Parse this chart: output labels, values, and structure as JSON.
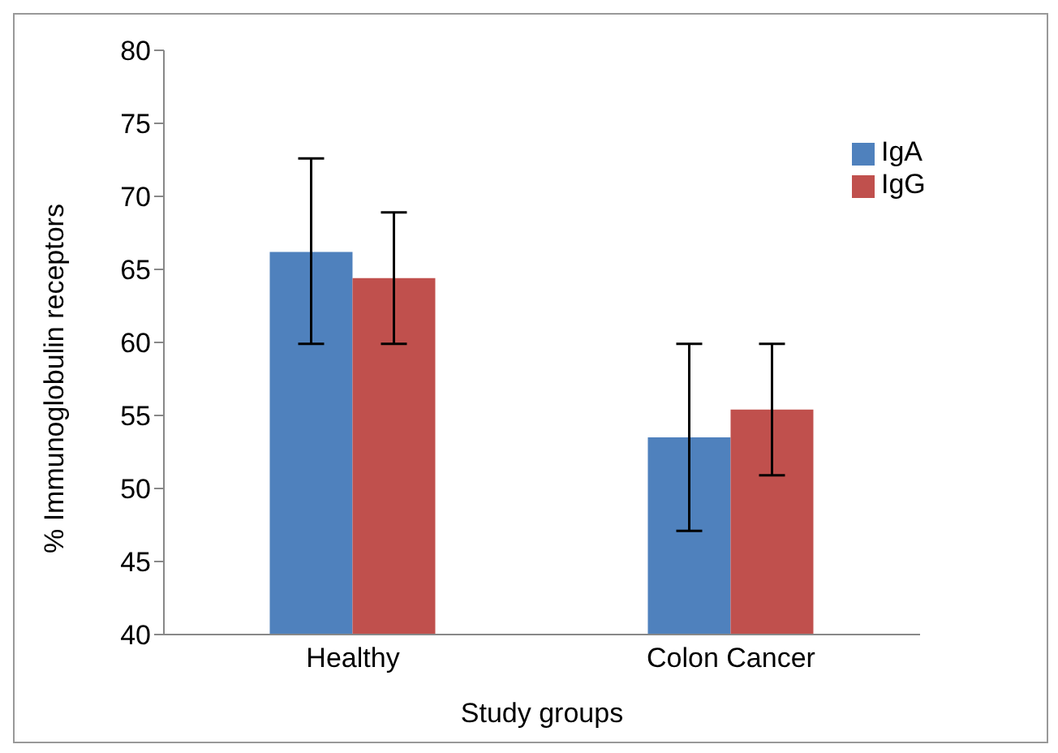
{
  "chart_data": {
    "type": "bar",
    "xlabel": "Study groups",
    "ylabel": "% Immunoglobulin receptors",
    "categories": [
      "Healthy",
      "Colon Cancer"
    ],
    "series": [
      {
        "name": "IgA",
        "color": "#4f81bd",
        "values": [
          66.2,
          53.5
        ],
        "errors": [
          [
            59.9,
            72.6
          ],
          [
            47.1,
            59.9
          ]
        ]
      },
      {
        "name": "IgG",
        "color": "#c0504d",
        "values": [
          64.4,
          55.4
        ],
        "errors": [
          [
            59.9,
            68.9
          ],
          [
            50.9,
            59.9
          ]
        ]
      }
    ],
    "ylim": [
      40,
      80
    ],
    "yticks": [
      40,
      45,
      50,
      55,
      60,
      65,
      70,
      75,
      80
    ],
    "grid": false,
    "legend": "top right"
  }
}
